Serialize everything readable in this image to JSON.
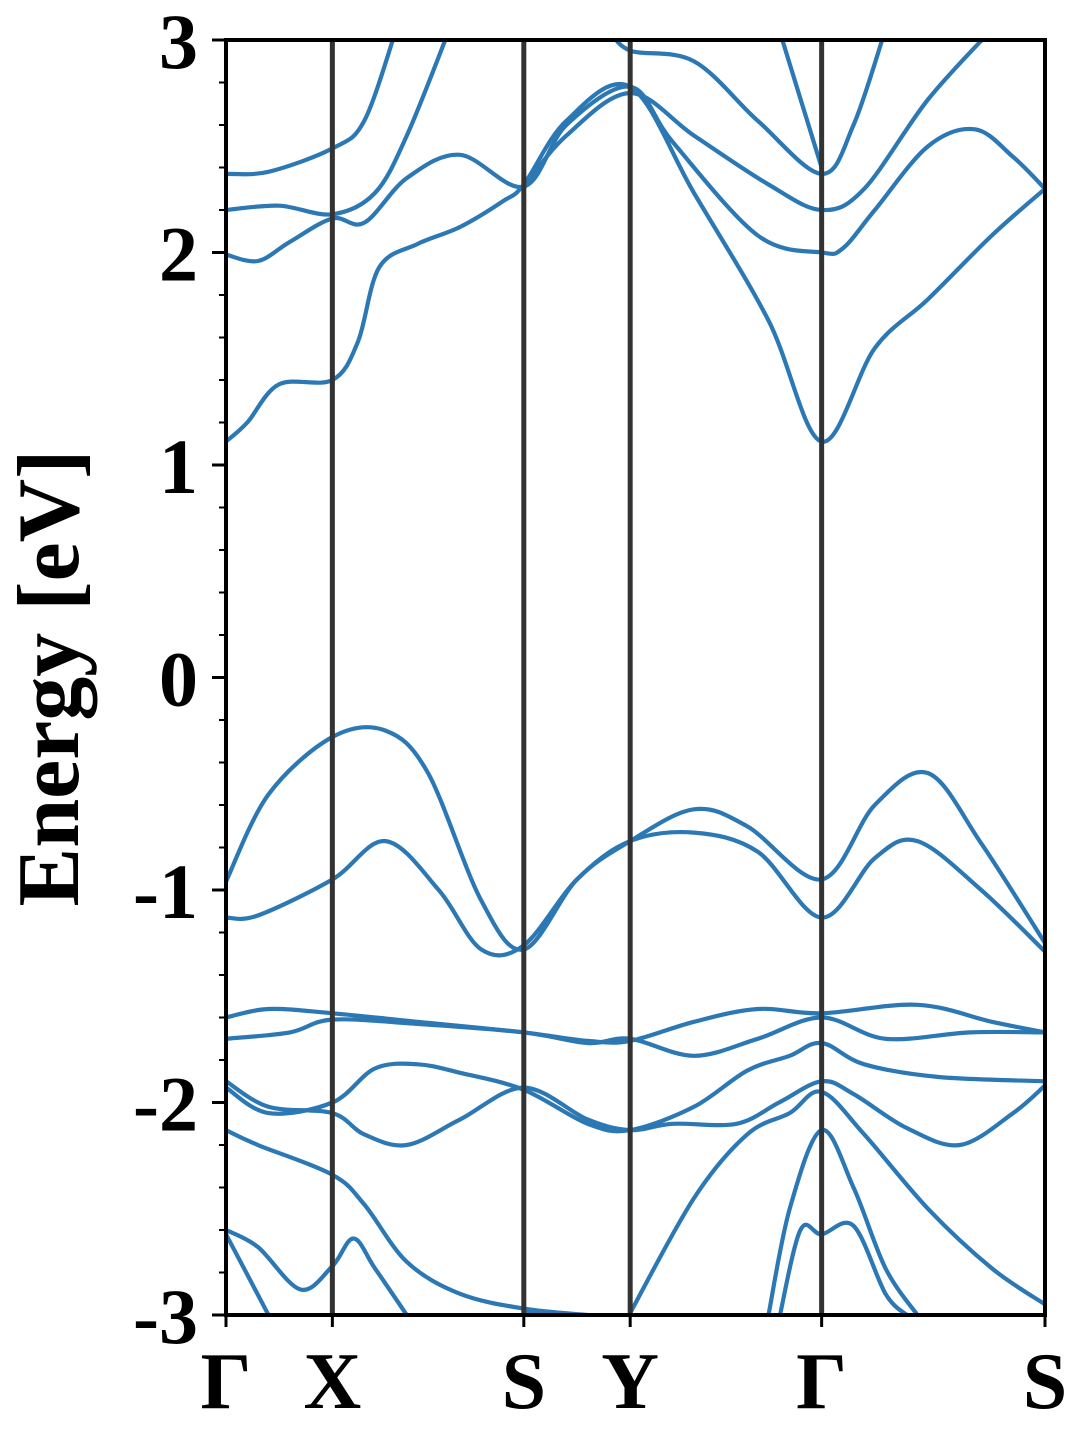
{
  "chart_data": {
    "type": "line",
    "title": "",
    "ylabel": "Energy [eV]",
    "xlabel": "",
    "ylim": [
      -3,
      3
    ],
    "xlim": [
      0,
      3.85
    ],
    "yticks": [
      -3,
      -2,
      -1,
      0,
      1,
      2,
      3
    ],
    "ytick_labels": [
      "-3",
      "-2",
      "-1",
      "0",
      "1",
      "2",
      "3"
    ],
    "minor_tick_step": 0.2,
    "grid": false,
    "legend": "none",
    "colors": {
      "band": "#2b78b4",
      "kline": "#333333",
      "axis": "#000000"
    },
    "kpoints": [
      {
        "label": "Γ",
        "x": 0.0
      },
      {
        "label": "X",
        "x": 0.5
      },
      {
        "label": "S",
        "x": 1.4
      },
      {
        "label": "Y",
        "x": 1.9
      },
      {
        "label": "Γ",
        "x": 2.8
      },
      {
        "label": "S",
        "x": 3.85
      }
    ],
    "series": [
      {
        "points": [
          [
            0.0,
            1.11
          ],
          [
            0.1,
            1.2
          ],
          [
            0.25,
            1.38
          ],
          [
            0.5,
            1.4
          ],
          [
            0.62,
            1.58
          ],
          [
            0.72,
            1.93
          ],
          [
            0.9,
            2.04
          ],
          [
            1.1,
            2.12
          ],
          [
            1.3,
            2.24
          ],
          [
            1.4,
            2.32
          ],
          [
            1.6,
            2.62
          ],
          [
            1.9,
            2.78
          ],
          [
            2.2,
            2.28
          ],
          [
            2.55,
            1.68
          ],
          [
            2.8,
            1.11
          ],
          [
            3.05,
            1.55
          ],
          [
            3.3,
            1.78
          ],
          [
            3.6,
            2.08
          ],
          [
            3.85,
            2.3
          ]
        ]
      },
      {
        "points": [
          [
            0.0,
            1.99
          ],
          [
            0.15,
            1.96
          ],
          [
            0.3,
            2.05
          ],
          [
            0.5,
            2.16
          ],
          [
            0.65,
            2.14
          ],
          [
            0.85,
            2.35
          ],
          [
            1.1,
            2.46
          ],
          [
            1.4,
            2.31
          ],
          [
            1.6,
            2.6
          ],
          [
            1.9,
            2.78
          ],
          [
            2.1,
            2.52
          ],
          [
            2.5,
            2.08
          ],
          [
            2.8,
            2.0
          ],
          [
            2.9,
            2.02
          ],
          [
            3.05,
            2.2
          ],
          [
            3.3,
            2.5
          ],
          [
            3.52,
            2.58
          ],
          [
            3.7,
            2.45
          ],
          [
            3.85,
            2.3
          ]
        ]
      },
      {
        "points": [
          [
            0.0,
            2.2
          ],
          [
            0.25,
            2.22
          ],
          [
            0.5,
            2.18
          ],
          [
            0.7,
            2.28
          ],
          [
            0.85,
            2.55
          ],
          [
            1.05,
            3.05
          ]
        ]
      },
      {
        "points": [
          [
            0.0,
            2.37
          ],
          [
            0.2,
            2.38
          ],
          [
            0.5,
            2.49
          ],
          [
            0.65,
            2.62
          ],
          [
            0.8,
            3.05
          ]
        ]
      },
      {
        "points": [
          [
            1.4,
            2.31
          ],
          [
            1.6,
            2.55
          ],
          [
            1.9,
            2.75
          ],
          [
            2.2,
            2.55
          ],
          [
            2.55,
            2.32
          ],
          [
            2.8,
            2.2
          ],
          [
            3.0,
            2.3
          ],
          [
            3.3,
            2.72
          ],
          [
            3.6,
            3.05
          ]
        ]
      },
      {
        "points": [
          [
            1.8,
            3.05
          ],
          [
            1.9,
            2.95
          ],
          [
            2.2,
            2.9
          ],
          [
            2.5,
            2.62
          ],
          [
            2.8,
            2.37
          ],
          [
            2.95,
            2.6
          ],
          [
            3.1,
            3.05
          ]
        ]
      },
      {
        "points": [
          [
            2.6,
            3.05
          ],
          [
            2.8,
            2.4
          ]
        ]
      },
      {
        "points": [
          [
            0.0,
            -0.96
          ],
          [
            0.2,
            -0.55
          ],
          [
            0.5,
            -0.28
          ],
          [
            0.75,
            -0.25
          ],
          [
            0.95,
            -0.45
          ],
          [
            1.2,
            -1.05
          ],
          [
            1.4,
            -1.28
          ],
          [
            1.65,
            -0.95
          ],
          [
            1.9,
            -0.77
          ],
          [
            2.2,
            -0.62
          ],
          [
            2.45,
            -0.7
          ],
          [
            2.8,
            -0.95
          ],
          [
            3.05,
            -0.6
          ],
          [
            3.3,
            -0.45
          ],
          [
            3.55,
            -0.78
          ],
          [
            3.85,
            -1.25
          ]
        ]
      },
      {
        "points": [
          [
            0.0,
            -1.13
          ],
          [
            0.15,
            -1.12
          ],
          [
            0.5,
            -0.95
          ],
          [
            0.75,
            -0.77
          ],
          [
            1.0,
            -1.0
          ],
          [
            1.2,
            -1.28
          ],
          [
            1.4,
            -1.26
          ],
          [
            1.65,
            -0.95
          ],
          [
            1.9,
            -0.77
          ],
          [
            2.2,
            -0.73
          ],
          [
            2.5,
            -0.82
          ],
          [
            2.8,
            -1.13
          ],
          [
            3.05,
            -0.85
          ],
          [
            3.25,
            -0.77
          ],
          [
            3.55,
            -1.0
          ],
          [
            3.85,
            -1.29
          ]
        ]
      },
      {
        "points": [
          [
            0.0,
            -1.6
          ],
          [
            0.2,
            -1.56
          ],
          [
            0.5,
            -1.58
          ],
          [
            0.9,
            -1.62
          ],
          [
            1.4,
            -1.67
          ],
          [
            1.7,
            -1.71
          ],
          [
            1.9,
            -1.71
          ],
          [
            2.2,
            -1.62
          ],
          [
            2.5,
            -1.56
          ],
          [
            2.8,
            -1.58
          ],
          [
            3.25,
            -1.54
          ],
          [
            3.6,
            -1.62
          ],
          [
            3.85,
            -1.67
          ]
        ]
      },
      {
        "points": [
          [
            0.0,
            -1.7
          ],
          [
            0.3,
            -1.67
          ],
          [
            0.5,
            -1.61
          ],
          [
            0.9,
            -1.63
          ],
          [
            1.4,
            -1.67
          ],
          [
            1.7,
            -1.72
          ],
          [
            1.9,
            -1.7
          ],
          [
            2.2,
            -1.78
          ],
          [
            2.5,
            -1.7
          ],
          [
            2.8,
            -1.6
          ],
          [
            3.1,
            -1.7
          ],
          [
            3.5,
            -1.67
          ],
          [
            3.85,
            -1.67
          ]
        ]
      },
      {
        "points": [
          [
            0.0,
            -1.9
          ],
          [
            0.2,
            -2.02
          ],
          [
            0.5,
            -2.05
          ],
          [
            0.65,
            -2.15
          ],
          [
            0.85,
            -2.2
          ],
          [
            1.1,
            -2.08
          ],
          [
            1.4,
            -1.93
          ],
          [
            1.7,
            -2.08
          ],
          [
            1.9,
            -2.13
          ],
          [
            2.1,
            -2.1
          ],
          [
            2.4,
            -2.1
          ],
          [
            2.6,
            -2.0
          ],
          [
            2.8,
            -1.9
          ],
          [
            2.95,
            -1.96
          ],
          [
            3.2,
            -2.12
          ],
          [
            3.45,
            -2.2
          ],
          [
            3.7,
            -2.05
          ],
          [
            3.85,
            -1.92
          ]
        ]
      },
      {
        "points": [
          [
            0.0,
            -1.93
          ],
          [
            0.2,
            -2.05
          ],
          [
            0.5,
            -2.0
          ],
          [
            0.7,
            -1.84
          ],
          [
            0.9,
            -1.82
          ],
          [
            1.1,
            -1.86
          ],
          [
            1.4,
            -1.94
          ],
          [
            1.7,
            -2.1
          ],
          [
            1.9,
            -2.13
          ],
          [
            2.2,
            -2.02
          ],
          [
            2.45,
            -1.85
          ],
          [
            2.65,
            -1.78
          ],
          [
            2.8,
            -1.72
          ],
          [
            3.0,
            -1.82
          ],
          [
            3.35,
            -1.88
          ],
          [
            3.85,
            -1.9
          ]
        ]
      },
      {
        "points": [
          [
            0.0,
            -2.13
          ],
          [
            0.15,
            -2.2
          ],
          [
            0.5,
            -2.34
          ],
          [
            0.65,
            -2.48
          ],
          [
            0.85,
            -2.75
          ],
          [
            1.1,
            -2.9
          ],
          [
            1.4,
            -2.97
          ],
          [
            1.7,
            -3.0
          ]
        ]
      },
      {
        "points": [
          [
            0.0,
            -2.6
          ],
          [
            0.15,
            -2.68
          ],
          [
            0.35,
            -2.88
          ],
          [
            0.5,
            -2.77
          ],
          [
            0.6,
            -2.64
          ],
          [
            0.7,
            -2.78
          ],
          [
            0.85,
            -3.0
          ]
        ]
      },
      {
        "points": [
          [
            0.0,
            -2.62
          ],
          [
            0.2,
            -3.0
          ]
        ]
      },
      {
        "points": [
          [
            1.4,
            -2.98
          ],
          [
            1.6,
            -3.02
          ],
          [
            1.75,
            -3.06
          ]
        ]
      },
      {
        "points": [
          [
            1.9,
            -2.99
          ],
          [
            2.2,
            -2.45
          ],
          [
            2.45,
            -2.15
          ],
          [
            2.65,
            -2.05
          ],
          [
            2.8,
            -1.95
          ],
          [
            3.0,
            -2.15
          ],
          [
            3.3,
            -2.5
          ],
          [
            3.6,
            -2.78
          ],
          [
            3.85,
            -2.95
          ]
        ]
      },
      {
        "points": [
          [
            2.55,
            -3.0
          ],
          [
            2.65,
            -2.5
          ],
          [
            2.8,
            -2.13
          ],
          [
            2.95,
            -2.4
          ],
          [
            3.1,
            -2.78
          ],
          [
            3.25,
            -3.0
          ]
        ]
      },
      {
        "points": [
          [
            2.6,
            -3.02
          ],
          [
            2.7,
            -2.6
          ],
          [
            2.8,
            -2.62
          ],
          [
            2.95,
            -2.58
          ],
          [
            3.1,
            -2.9
          ],
          [
            3.2,
            -3.0
          ]
        ]
      }
    ]
  }
}
